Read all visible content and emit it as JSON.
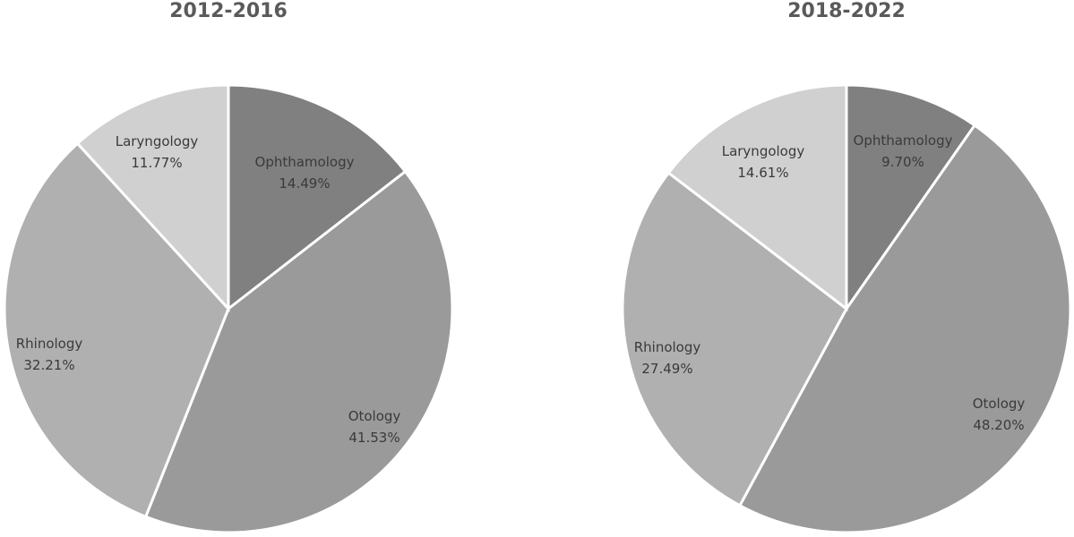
{
  "chart_data": [
    {
      "type": "pie",
      "title": "2012-2016",
      "slices": [
        {
          "label": "Ophthamology",
          "value": 14.49,
          "value_label": "14.49%",
          "color": "#808080"
        },
        {
          "label": "Otology",
          "value": 41.53,
          "value_label": "41.53%",
          "color": "#9a9a9a"
        },
        {
          "label": "Rhinology",
          "value": 32.21,
          "value_label": "32.21%",
          "color": "#b0b0b0"
        },
        {
          "label": "Laryngology",
          "value": 11.77,
          "value_label": "11.77%",
          "color": "#d0d0d0"
        }
      ]
    },
    {
      "type": "pie",
      "title": "2018-2022",
      "slices": [
        {
          "label": "Ophthamology",
          "value": 9.7,
          "value_label": "9.70%",
          "color": "#808080"
        },
        {
          "label": "Otology",
          "value": 48.2,
          "value_label": "48.20%",
          "color": "#9a9a9a"
        },
        {
          "label": "Rhinology",
          "value": 27.49,
          "value_label": "27.49%",
          "color": "#b0b0b0"
        },
        {
          "label": "Laryngology",
          "value": 14.61,
          "value_label": "14.61%",
          "color": "#d0d0d0"
        }
      ]
    }
  ]
}
